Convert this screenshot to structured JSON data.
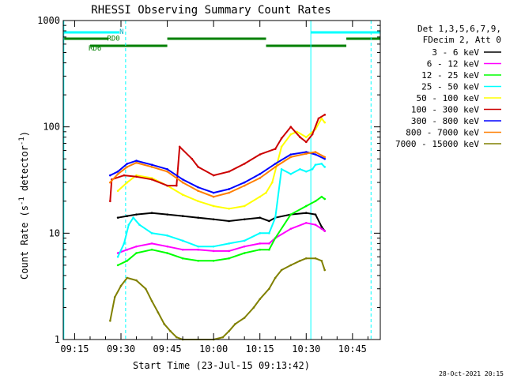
{
  "chart_data": {
    "type": "line",
    "title": "RHESSI Observing Summary Count Rates",
    "xlabel": "Start Time (23-Jul-15 09:13:42)",
    "ylabel_main": "Count Rate (s",
    "ylabel_sup1": "-1",
    "ylabel_mid": " detector",
    "ylabel_sup2": "-1",
    "ylabel_end": ")",
    "y_scale": "log",
    "ylim": [
      1,
      1000
    ],
    "xlim_minutes": [
      -3.7,
      99
    ],
    "x_ticks": [
      {
        "m": 0,
        "label": "09:15"
      },
      {
        "m": 15,
        "label": "09:30"
      },
      {
        "m": 30,
        "label": "09:45"
      },
      {
        "m": 45,
        "label": "10:00"
      },
      {
        "m": 60,
        "label": "10:15"
      },
      {
        "m": 75,
        "label": "10:30"
      },
      {
        "m": 90,
        "label": "10:45"
      }
    ],
    "y_ticks": [
      {
        "v": 1,
        "label": "1"
      },
      {
        "v": 10,
        "label": "10"
      },
      {
        "v": 100,
        "label": "100"
      },
      {
        "v": 1000,
        "label": "1000"
      }
    ],
    "legend_header": [
      "Det 1,3,5,6,7,9,",
      "FDecim 2, Att 0"
    ],
    "series": [
      {
        "name": "3 - 6 keV",
        "color": "#000000",
        "points": [
          [
            14,
            14
          ],
          [
            17,
            14.5
          ],
          [
            20,
            15
          ],
          [
            25,
            15.5
          ],
          [
            30,
            15
          ],
          [
            35,
            14.5
          ],
          [
            40,
            14
          ],
          [
            45,
            13.5
          ],
          [
            50,
            13
          ],
          [
            55,
            13.5
          ],
          [
            60,
            14
          ],
          [
            63,
            13
          ],
          [
            65,
            14
          ],
          [
            70,
            15
          ],
          [
            75,
            15.5
          ],
          [
            78,
            15
          ],
          [
            80,
            11.5
          ],
          [
            81,
            10.5
          ]
        ]
      },
      {
        "name": "6 - 12 keV",
        "color": "#ff00ff",
        "points": [
          [
            14,
            6.5
          ],
          [
            17,
            7
          ],
          [
            20,
            7.5
          ],
          [
            25,
            8
          ],
          [
            30,
            7.5
          ],
          [
            35,
            7
          ],
          [
            40,
            7
          ],
          [
            45,
            6.8
          ],
          [
            50,
            6.8
          ],
          [
            55,
            7.5
          ],
          [
            60,
            8
          ],
          [
            63,
            8
          ],
          [
            65,
            9
          ],
          [
            70,
            11
          ],
          [
            75,
            12.5
          ],
          [
            78,
            12
          ],
          [
            80,
            11
          ],
          [
            81,
            10.5
          ]
        ]
      },
      {
        "name": "12 - 25 keV",
        "color": "#00ff00",
        "points": [
          [
            14,
            5
          ],
          [
            17,
            5.5
          ],
          [
            20,
            6.5
          ],
          [
            25,
            7
          ],
          [
            30,
            6.5
          ],
          [
            35,
            5.8
          ],
          [
            40,
            5.5
          ],
          [
            45,
            5.5
          ],
          [
            50,
            5.8
          ],
          [
            55,
            6.5
          ],
          [
            60,
            7
          ],
          [
            63,
            7
          ],
          [
            65,
            9
          ],
          [
            70,
            15
          ],
          [
            75,
            18
          ],
          [
            78,
            20
          ],
          [
            80,
            22
          ],
          [
            81,
            21
          ]
        ]
      },
      {
        "name": "25 - 50 keV",
        "color": "#00ffff",
        "points": [
          [
            14,
            6
          ],
          [
            16,
            8
          ],
          [
            17.5,
            12
          ],
          [
            19,
            14
          ],
          [
            21,
            12
          ],
          [
            25,
            10
          ],
          [
            30,
            9.5
          ],
          [
            35,
            8.5
          ],
          [
            40,
            7.5
          ],
          [
            45,
            7.5
          ],
          [
            50,
            8
          ],
          [
            55,
            8.5
          ],
          [
            60,
            10
          ],
          [
            63,
            10
          ],
          [
            65,
            14
          ],
          [
            67,
            40
          ],
          [
            70,
            36
          ],
          [
            73,
            40
          ],
          [
            75,
            38
          ],
          [
            77,
            40
          ],
          [
            78,
            44
          ],
          [
            80,
            45
          ],
          [
            81,
            42
          ]
        ]
      },
      {
        "name": "50 - 100 keV",
        "color": "#ffff00",
        "points": [
          [
            14,
            25
          ],
          [
            17,
            30
          ],
          [
            20,
            35
          ],
          [
            25,
            33
          ],
          [
            30,
            28
          ],
          [
            35,
            23
          ],
          [
            40,
            20
          ],
          [
            45,
            18
          ],
          [
            50,
            17
          ],
          [
            55,
            18
          ],
          [
            60,
            22
          ],
          [
            62,
            24
          ],
          [
            64,
            30
          ],
          [
            67,
            65
          ],
          [
            70,
            85
          ],
          [
            72,
            90
          ],
          [
            75,
            80
          ],
          [
            78,
            95
          ],
          [
            80,
            120
          ],
          [
            81,
            110
          ]
        ]
      },
      {
        "name": "100 - 300 keV",
        "color": "#cc0000",
        "points": [
          [
            11.5,
            20
          ],
          [
            12,
            32
          ],
          [
            16,
            35
          ],
          [
            20,
            34
          ],
          [
            25,
            32
          ],
          [
            30,
            28
          ],
          [
            33,
            28
          ],
          [
            34,
            65
          ],
          [
            38,
            50
          ],
          [
            40,
            42
          ],
          [
            45,
            35
          ],
          [
            50,
            38
          ],
          [
            55,
            45
          ],
          [
            60,
            55
          ],
          [
            65,
            62
          ],
          [
            67,
            78
          ],
          [
            70,
            100
          ],
          [
            73,
            80
          ],
          [
            75,
            72
          ],
          [
            77,
            85
          ],
          [
            79,
            120
          ],
          [
            81,
            130
          ]
        ]
      },
      {
        "name": "300 - 800 keV",
        "color": "#0000ff",
        "points": [
          [
            11.5,
            35
          ],
          [
            14,
            38
          ],
          [
            17,
            45
          ],
          [
            20,
            48
          ],
          [
            25,
            44
          ],
          [
            30,
            40
          ],
          [
            35,
            32
          ],
          [
            40,
            27
          ],
          [
            45,
            24
          ],
          [
            50,
            26
          ],
          [
            55,
            30
          ],
          [
            60,
            36
          ],
          [
            65,
            45
          ],
          [
            70,
            55
          ],
          [
            75,
            58
          ],
          [
            78,
            55
          ],
          [
            81,
            50
          ]
        ]
      },
      {
        "name": "800 - 7000 keV",
        "color": "#ff7f00",
        "points": [
          [
            11.5,
            30
          ],
          [
            14,
            36
          ],
          [
            17,
            42
          ],
          [
            20,
            46
          ],
          [
            25,
            42
          ],
          [
            30,
            38
          ],
          [
            35,
            30
          ],
          [
            40,
            25
          ],
          [
            45,
            22
          ],
          [
            50,
            24
          ],
          [
            55,
            28
          ],
          [
            60,
            33
          ],
          [
            65,
            42
          ],
          [
            70,
            52
          ],
          [
            75,
            56
          ],
          [
            78,
            58
          ],
          [
            81,
            52
          ]
        ]
      },
      {
        "name": "7000 - 15000 keV",
        "color": "#808000",
        "points": [
          [
            11.5,
            1.5
          ],
          [
            13,
            2.5
          ],
          [
            15,
            3.2
          ],
          [
            17,
            3.8
          ],
          [
            20,
            3.6
          ],
          [
            23,
            3.0
          ],
          [
            25,
            2.3
          ],
          [
            27,
            1.8
          ],
          [
            29,
            1.4
          ],
          [
            31,
            1.2
          ],
          [
            33,
            1.05
          ],
          [
            35,
            1.0
          ],
          [
            45,
            1.0
          ],
          [
            48,
            1.05
          ],
          [
            50,
            1.2
          ],
          [
            52,
            1.4
          ],
          [
            55,
            1.6
          ],
          [
            58,
            2.0
          ],
          [
            60,
            2.4
          ],
          [
            63,
            3.0
          ],
          [
            65,
            3.8
          ],
          [
            67,
            4.5
          ],
          [
            70,
            5.0
          ],
          [
            73,
            5.5
          ],
          [
            75,
            5.8
          ],
          [
            78,
            5.8
          ],
          [
            80,
            5.5
          ],
          [
            81,
            4.5
          ]
        ]
      }
    ],
    "attenuator_labels": [
      {
        "label": "N",
        "m": 14.5,
        "v": 800
      },
      {
        "label": "RD0",
        "m": 10.5,
        "v": 695
      },
      {
        "label": "RD6",
        "m": 4.5,
        "v": 560
      }
    ],
    "timestamp": "28-Oct-2021 20:15"
  }
}
